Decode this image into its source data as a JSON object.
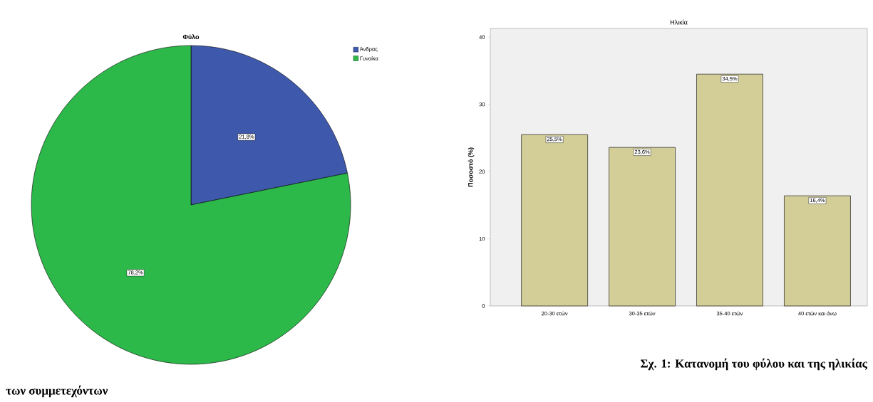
{
  "chart_data": [
    {
      "type": "pie",
      "title": "Φύλο",
      "categories": [
        "Άνδρας",
        "Γυναίκα"
      ],
      "values": [
        21.8,
        78.2
      ],
      "colors": [
        "#3e58ac",
        "#2db84a"
      ],
      "value_labels": [
        "21,8%",
        "78,2%"
      ],
      "legend": "top right"
    },
    {
      "type": "bar",
      "title": "Ηλικία",
      "ylabel": "Ποσοστό (%)",
      "categories": [
        "20-30 ετών",
        "30-35 ετών",
        "35-40 ετών",
        "40 ετών και άνω"
      ],
      "values": [
        25.5,
        23.6,
        34.5,
        16.4
      ],
      "color": "#d3cd98",
      "value_labels": [
        "25,5%",
        "23,6%",
        "34,5%",
        "16,4%"
      ],
      "ylim": [
        0,
        41.3
      ],
      "yticks": [
        0,
        10,
        20,
        30,
        40
      ],
      "grid": false,
      "annotations": [
        "Σχ. 1: Κατανομή του φύλου και της ηλικίας",
        "των συμμετεχόντων"
      ]
    }
  ]
}
